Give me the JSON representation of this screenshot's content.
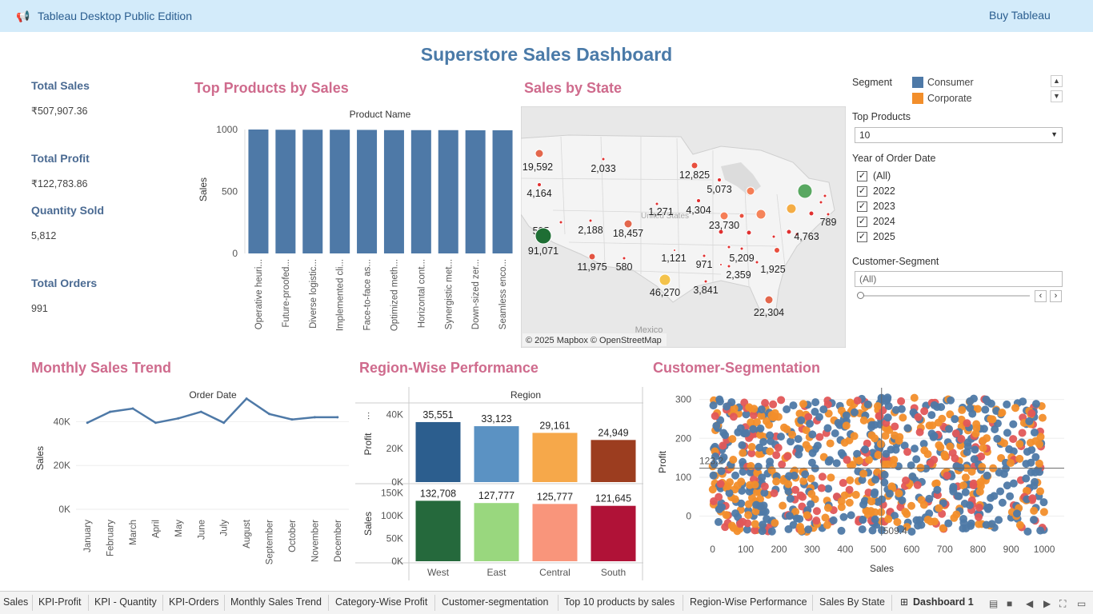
{
  "topbar": {
    "icon": "megaphone-icon",
    "app_title": "Tableau Desktop Public Edition",
    "buy_label": "Buy Tableau"
  },
  "dashboard_title": "Superstore Sales Dashboard",
  "kpis": [
    {
      "label": "Total Sales",
      "value": "₹507,907.36"
    },
    {
      "label": "Total Profit",
      "value": "₹122,783.86"
    },
    {
      "label": "Quantity Sold",
      "value": "5,812"
    },
    {
      "label": "Total Orders",
      "value": "991"
    }
  ],
  "sections": {
    "top_products": "Top Products by Sales",
    "sales_by_state": "Sales by State",
    "monthly_trend": "Monthly Sales Trend",
    "region_perf": "Region-Wise Performance",
    "segmentation": "Customer-Segmentation"
  },
  "colors": {
    "consumer": "#4e79a7",
    "corporate": "#f28e2b",
    "home_office": "#e15759",
    "bar_blue": "#4e79a7",
    "title_pink": "#cf6b8d"
  },
  "chart_data": [
    {
      "type": "bar",
      "title": "Product Name",
      "ylabel": "Sales",
      "ylim": [
        0,
        1000
      ],
      "yticks": [
        "0",
        "500",
        "1000"
      ],
      "categories": [
        "Operative heuri...",
        "Future-proofed...",
        "Diverse logistic...",
        "Implemented cli...",
        "Face-to-face as...",
        "Optimized meth...",
        "Horizontal cont...",
        "Synergistic met...",
        "Down-sized zer...",
        "Seamless enco..."
      ],
      "values": [
        1000,
        998,
        998,
        998,
        997,
        995,
        995,
        995,
        994,
        994
      ]
    },
    {
      "type": "scatter",
      "title": "Sales by State",
      "attribution": "© 2025 Mapbox © OpenStreetMap",
      "map_labels": [
        "Mexico",
        "United States"
      ],
      "labels": [
        "19,592",
        "2,033",
        "12,825",
        "5,073",
        "4,164",
        "1,271",
        "4,304",
        "789",
        "525",
        "2,188",
        "18,457",
        "23,730",
        "4,763",
        "91,071",
        "11,975",
        "580",
        "1,121",
        "971",
        "5,209",
        "1,925",
        "2,359",
        "46,270",
        "3,841",
        "22,304"
      ]
    },
    {
      "type": "line",
      "title": "Order Date",
      "ylabel": "Sales",
      "ylim": [
        0,
        50000
      ],
      "yticks": [
        "0K",
        "20K",
        "40K"
      ],
      "categories": [
        "January",
        "February",
        "March",
        "April",
        "May",
        "June",
        "July",
        "August",
        "September",
        "October",
        "November",
        "December"
      ],
      "values": [
        39500,
        44500,
        46000,
        39500,
        41500,
        44500,
        39500,
        50500,
        43500,
        41000,
        42000,
        42000
      ]
    },
    {
      "type": "bar",
      "title": "Region",
      "categories": [
        "West",
        "East",
        "Central",
        "South"
      ],
      "series": [
        {
          "name": "Profit",
          "values": [
            35551,
            33123,
            29161,
            24949
          ],
          "labels": [
            "35,551",
            "33,123",
            "29,161",
            "24,949"
          ],
          "colors": [
            "#2c5e8e",
            "#5b92c3",
            "#f6a84a",
            "#9c3d1f"
          ],
          "ylim": [
            0,
            45000
          ],
          "yticks": [
            "0K",
            "20K",
            "40K"
          ]
        },
        {
          "name": "Sales",
          "values": [
            132708,
            127777,
            125777,
            121645
          ],
          "labels": [
            "132,708",
            "127,777",
            "125,777",
            "121,645"
          ],
          "colors": [
            "#25693c",
            "#99d77e",
            "#f9957b",
            "#b01237"
          ],
          "ylim": [
            0,
            165000
          ],
          "yticks": [
            "0K",
            "50K",
            "100K",
            "150K"
          ]
        }
      ]
    },
    {
      "type": "scatter",
      "xlabel": "Sales",
      "ylabel": "Profit",
      "xlim": [
        -40,
        1060
      ],
      "ylim": [
        -50,
        330
      ],
      "xticks": [
        "0",
        "100",
        "200",
        "300",
        "400",
        "500",
        "600",
        "700",
        "800",
        "900",
        "1000"
      ],
      "yticks": [
        "0",
        "100",
        "200",
        "300"
      ],
      "reference_lines": {
        "x": 509.4,
        "y": 123.2,
        "x_label": "509.4",
        "y_label": "123.2"
      }
    }
  ],
  "filters": {
    "segment_label": "Segment",
    "segment_legend": [
      {
        "name": "Consumer",
        "color": "#4e79a7"
      },
      {
        "name": "Corporate",
        "color": "#f28e2b"
      }
    ],
    "top_products_label": "Top Products",
    "top_products_value": "10",
    "year_label": "Year of Order Date",
    "years": [
      {
        "label": "(All)",
        "checked": true
      },
      {
        "label": "2022",
        "checked": true
      },
      {
        "label": "2023",
        "checked": true
      },
      {
        "label": "2024",
        "checked": true
      },
      {
        "label": "2025",
        "checked": true
      }
    ],
    "customer_segment_label": "Customer-Segment",
    "customer_segment_value": "(All)"
  },
  "tabs": [
    {
      "label": "Sales",
      "active": false
    },
    {
      "label": "KPI-Profit",
      "active": false
    },
    {
      "label": "KPI - Quantity",
      "active": false
    },
    {
      "label": "KPI-Orders",
      "active": false
    },
    {
      "label": "Monthly Sales Trend",
      "active": false
    },
    {
      "label": "Category-Wise Profit",
      "active": false
    },
    {
      "label": "Customer-segmentation",
      "active": false
    },
    {
      "label": "Top 10 products by sales",
      "active": false
    },
    {
      "label": "Region-Wise Performance",
      "active": false
    },
    {
      "label": "Sales By State",
      "active": false
    },
    {
      "label": "Dashboard 1",
      "active": true
    }
  ]
}
